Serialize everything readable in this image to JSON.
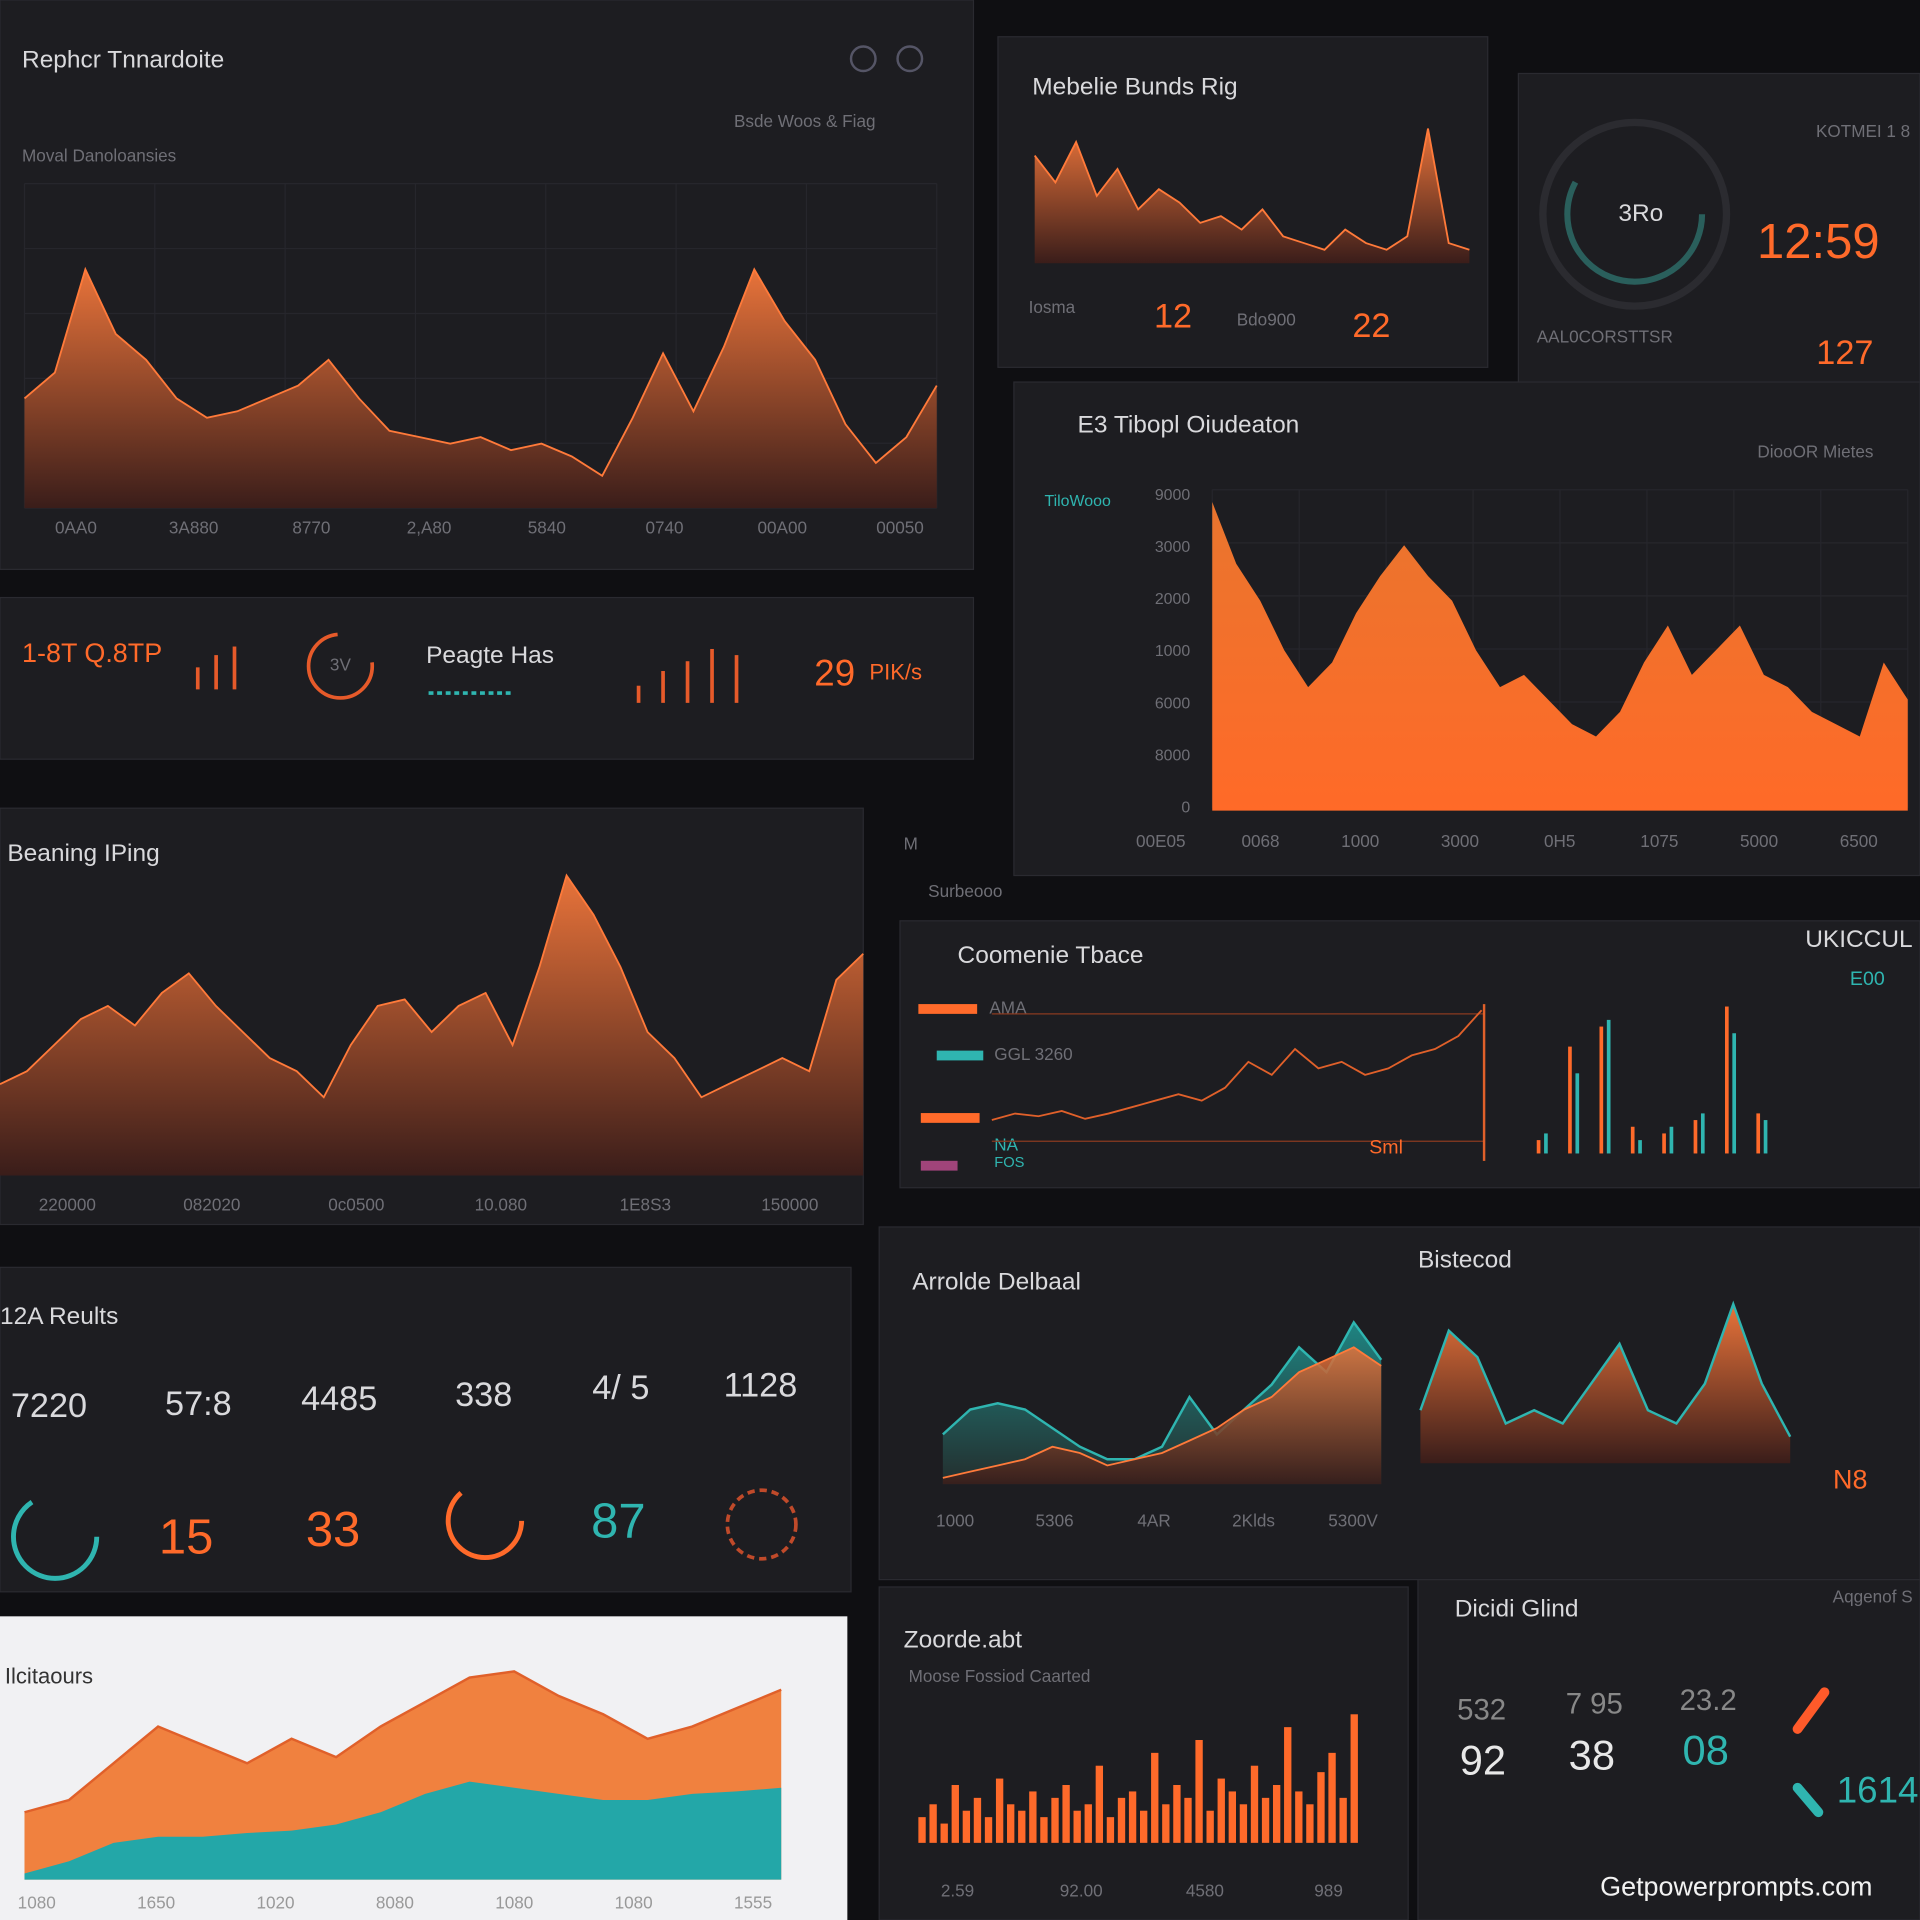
{
  "header": {
    "title": "Rephcr Tnnardoite",
    "subtitle": "Moval Danoloansies",
    "menu": "Bsde Woos & Fiag"
  },
  "main_chart": {
    "values": [
      85,
      105,
      185,
      135,
      115,
      85,
      70,
      75,
      85,
      95,
      115,
      85,
      60,
      55,
      50,
      55,
      45,
      50,
      40,
      25,
      70,
      120,
      75,
      125,
      185,
      145,
      115,
      65,
      35,
      55,
      95
    ],
    "x_labels": [
      "0AA0",
      "3A880",
      "8770",
      "2,A80",
      "5840",
      "0740",
      "00A00",
      "00050"
    ]
  },
  "kpi_strip": {
    "code": "1-8T Q.8TP",
    "label": "Peagte Has",
    "gauge": "3V",
    "value": "29",
    "unit": "PIK/s"
  },
  "beaning_chart": {
    "title": "Beaning IPing",
    "values": [
      70,
      80,
      100,
      120,
      130,
      115,
      140,
      155,
      130,
      110,
      90,
      80,
      60,
      100,
      130,
      135,
      110,
      130,
      140,
      100,
      160,
      230,
      200,
      160,
      110,
      90,
      60,
      70,
      80,
      90,
      80,
      150,
      170
    ],
    "x_labels": [
      "220000",
      "082020",
      "0c0500",
      "10.080",
      "1E8S3",
      "150000"
    ]
  },
  "results": {
    "title": "12A Reults",
    "stats": [
      "7220",
      "57:8",
      "4485",
      "338",
      "4/ 5",
      "1128"
    ],
    "gauges": [
      "15",
      "33",
      "87"
    ]
  },
  "white_chart": {
    "title": "Ilcitaours",
    "orange": [
      55,
      65,
      95,
      125,
      110,
      95,
      115,
      100,
      125,
      145,
      165,
      170,
      150,
      135,
      115,
      125,
      140,
      155
    ],
    "teal": [
      5,
      15,
      30,
      35,
      35,
      38,
      40,
      45,
      55,
      70,
      80,
      75,
      70,
      65,
      65,
      70,
      72,
      75
    ],
    "x_labels": [
      "1080",
      "1650",
      "1020",
      "8080",
      "1080",
      "1080",
      "1555"
    ]
  },
  "top_chart": {
    "title": "Mebelie Bunds Rig",
    "values": [
      80,
      60,
      90,
      50,
      70,
      40,
      55,
      45,
      30,
      35,
      25,
      40,
      20,
      15,
      10,
      25,
      15,
      10,
      20,
      100,
      15,
      10
    ],
    "stats": [
      {
        "label": "Iosma",
        "value": "12"
      },
      {
        "label": "Bdo900",
        "value": "22"
      }
    ]
  },
  "gauge_panel": {
    "label": "KOTMEI 1 8",
    "center": "3Ro",
    "value": "12:59",
    "sub_value": "127",
    "footer": "AAL0CORSTTSR"
  },
  "right_chart": {
    "title": "E3 Tibopl Oiudeaton",
    "legend": "DiooOR Mietes",
    "side_label": "TiloWooo",
    "values": [
      250,
      200,
      170,
      130,
      100,
      120,
      160,
      190,
      215,
      190,
      170,
      130,
      100,
      110,
      90,
      70,
      60,
      80,
      120,
      150,
      110,
      130,
      150,
      110,
      100,
      80,
      70,
      60,
      120,
      90
    ],
    "y_labels": [
      "9000",
      "3000",
      "2000",
      "1000",
      "6000",
      "8000",
      "0"
    ],
    "x_labels": [
      "00E05",
      "0068",
      "1000",
      "3000",
      "0H5",
      "1075",
      "5000",
      "6500"
    ]
  },
  "marker": "M",
  "marker_sub": "Surbeooo",
  "trace_panel": {
    "title": "Coomenie Tbace",
    "legend": [
      "AMA",
      "GGL 3260",
      "NA",
      "FOS"
    ],
    "line": [
      5,
      10,
      8,
      12,
      6,
      10,
      15,
      20,
      25,
      20,
      30,
      50,
      40,
      60,
      45,
      50,
      40,
      45,
      55,
      60,
      70,
      90
    ],
    "bars_orange": [
      10,
      80,
      95,
      20,
      15,
      25,
      110,
      30
    ],
    "bars_teal": [
      15,
      60,
      100,
      10,
      20,
      30,
      90,
      25
    ],
    "right_title": "UKICCUL",
    "right_value": "E00",
    "annotation": "Sml"
  },
  "arrolde_panel": {
    "title": "Arrolde Delbaal",
    "title2": "Bistecod",
    "teal": [
      40,
      60,
      65,
      60,
      45,
      30,
      20,
      20,
      30,
      70,
      40,
      60,
      80,
      110,
      90,
      130,
      100
    ],
    "orange": [
      5,
      10,
      15,
      20,
      30,
      25,
      15,
      20,
      25,
      35,
      45,
      60,
      70,
      90,
      100,
      110,
      95
    ],
    "right": [
      40,
      100,
      80,
      30,
      40,
      30,
      60,
      90,
      40,
      30,
      60,
      120,
      60,
      20
    ],
    "side": "N8",
    "x_labels": [
      "1000",
      "5306",
      "4AR",
      "2Klds",
      "5300V"
    ]
  },
  "zoorde_panel": {
    "title": "Zoorde.abt",
    "subtitle": "Moose Fossiod Caarted",
    "values": [
      20,
      30,
      15,
      45,
      25,
      35,
      20,
      50,
      30,
      25,
      40,
      20,
      35,
      45,
      25,
      30,
      60,
      20,
      35,
      40,
      25,
      70,
      30,
      45,
      35,
      80,
      25,
      50,
      40,
      30,
      60,
      35,
      45,
      90,
      40,
      30,
      55,
      70,
      35,
      100
    ],
    "x_labels": [
      "2.59",
      "92.00",
      "4580",
      "989"
    ]
  },
  "dicidi_panel": {
    "title": "Dicidi Glind",
    "corner": "Aqgenof S",
    "row1": [
      "532",
      "7 95",
      "23.2"
    ],
    "row2": [
      "92",
      "38",
      "08"
    ],
    "side_value": "1614"
  },
  "watermark": "Getpowerprompts.com"
}
